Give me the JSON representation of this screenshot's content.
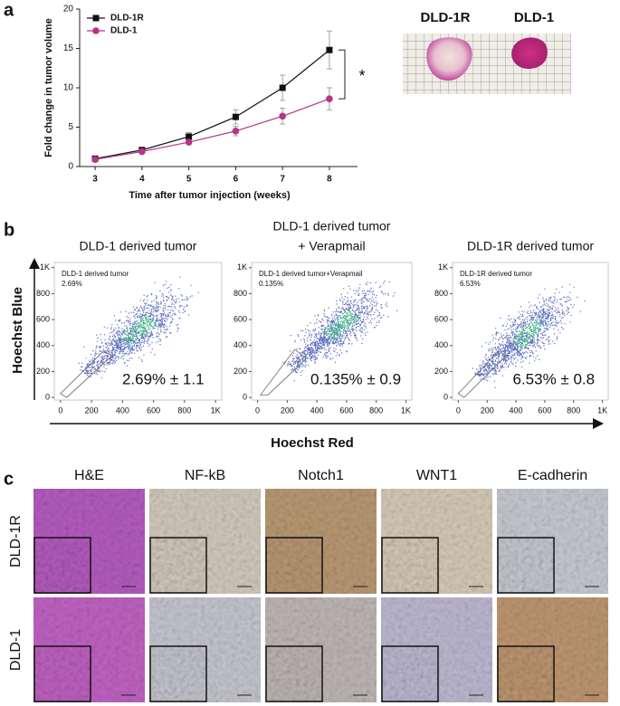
{
  "panel_labels": [
    "a",
    "b",
    "c"
  ],
  "chart_data": [
    {
      "type": "line",
      "x_label": "Time after tumor injection (weeks)",
      "y_label": "Fold change in tumor volume",
      "x": [
        3,
        4,
        5,
        6,
        7,
        8
      ],
      "series": [
        {
          "name": "DLD-1R",
          "color": "#111111",
          "marker": "square",
          "values": [
            1.0,
            2.1,
            3.8,
            6.3,
            10.0,
            14.8
          ],
          "errors": [
            0.2,
            0.3,
            0.5,
            0.9,
            1.6,
            2.4
          ]
        },
        {
          "name": "DLD-1",
          "color": "#b5338a",
          "marker": "circle",
          "values": [
            0.9,
            1.9,
            3.1,
            4.5,
            6.4,
            8.6
          ],
          "errors": [
            0.1,
            0.2,
            0.3,
            0.6,
            1.0,
            1.4
          ]
        }
      ],
      "xlim": [
        2.67,
        8.6
      ],
      "ylim": [
        0,
        20
      ],
      "xticks": [
        3,
        4,
        5,
        6,
        7,
        8
      ],
      "yticks": [
        0,
        5,
        10,
        15,
        20
      ],
      "legend": "upper-left",
      "annotation": "*"
    },
    {
      "type": "density",
      "title_lines": [
        "DLD-1 derived tumor"
      ],
      "gate_label": "DLD-1 derived tumor",
      "gate_value": "2.69%",
      "annotation": "2.69% ± 1.1",
      "xlim": [
        -40,
        1040
      ],
      "ylim": [
        -20,
        1040
      ],
      "xticks": [
        0,
        200,
        400,
        600,
        800,
        {
          "value": 1000,
          "label": "1K"
        }
      ],
      "yticks": [
        0,
        200,
        400,
        600,
        800,
        {
          "value": 1000,
          "label": "1K"
        }
      ]
    },
    {
      "type": "density",
      "title_lines": [
        "DLD-1 derived tumor",
        "+ Verapmail"
      ],
      "gate_label": "DLD-1 derived tumor+Verapmail",
      "gate_value": "0.135%",
      "annotation": "0.135% ± 0.9",
      "xlim": [
        -40,
        1040
      ],
      "ylim": [
        -20,
        1040
      ],
      "xticks": [
        0,
        200,
        400,
        600,
        800,
        {
          "value": 1000,
          "label": "1K"
        }
      ],
      "yticks": [
        0,
        200,
        400,
        600,
        800,
        {
          "value": 1000,
          "label": "1K"
        }
      ]
    },
    {
      "type": "density",
      "title_lines": [
        "DLD-1R derived tumor"
      ],
      "gate_label": "DLD-1R derived tumor",
      "gate_value": "6.53%",
      "annotation": "6.53% ± 0.8",
      "xlim": [
        -40,
        1040
      ],
      "ylim": [
        -20,
        1040
      ],
      "xticks": [
        0,
        200,
        400,
        600,
        800,
        {
          "value": 1000,
          "label": "1K"
        }
      ],
      "yticks": [
        0,
        200,
        400,
        600,
        800,
        {
          "value": 1000,
          "label": "1K"
        }
      ]
    }
  ],
  "panel_a_photo": {
    "labels": [
      "DLD-1R",
      "DLD-1"
    ]
  },
  "panel_b": {
    "x_axis_label": "Hoechst Red",
    "y_axis_label": "Hoechst Blue"
  },
  "panel_c": {
    "columns": [
      "H&E",
      "NF-kB",
      "Notch1",
      "WNT1",
      "E-cadherin"
    ],
    "rows": [
      "DLD-1R",
      "DLD-1"
    ]
  }
}
